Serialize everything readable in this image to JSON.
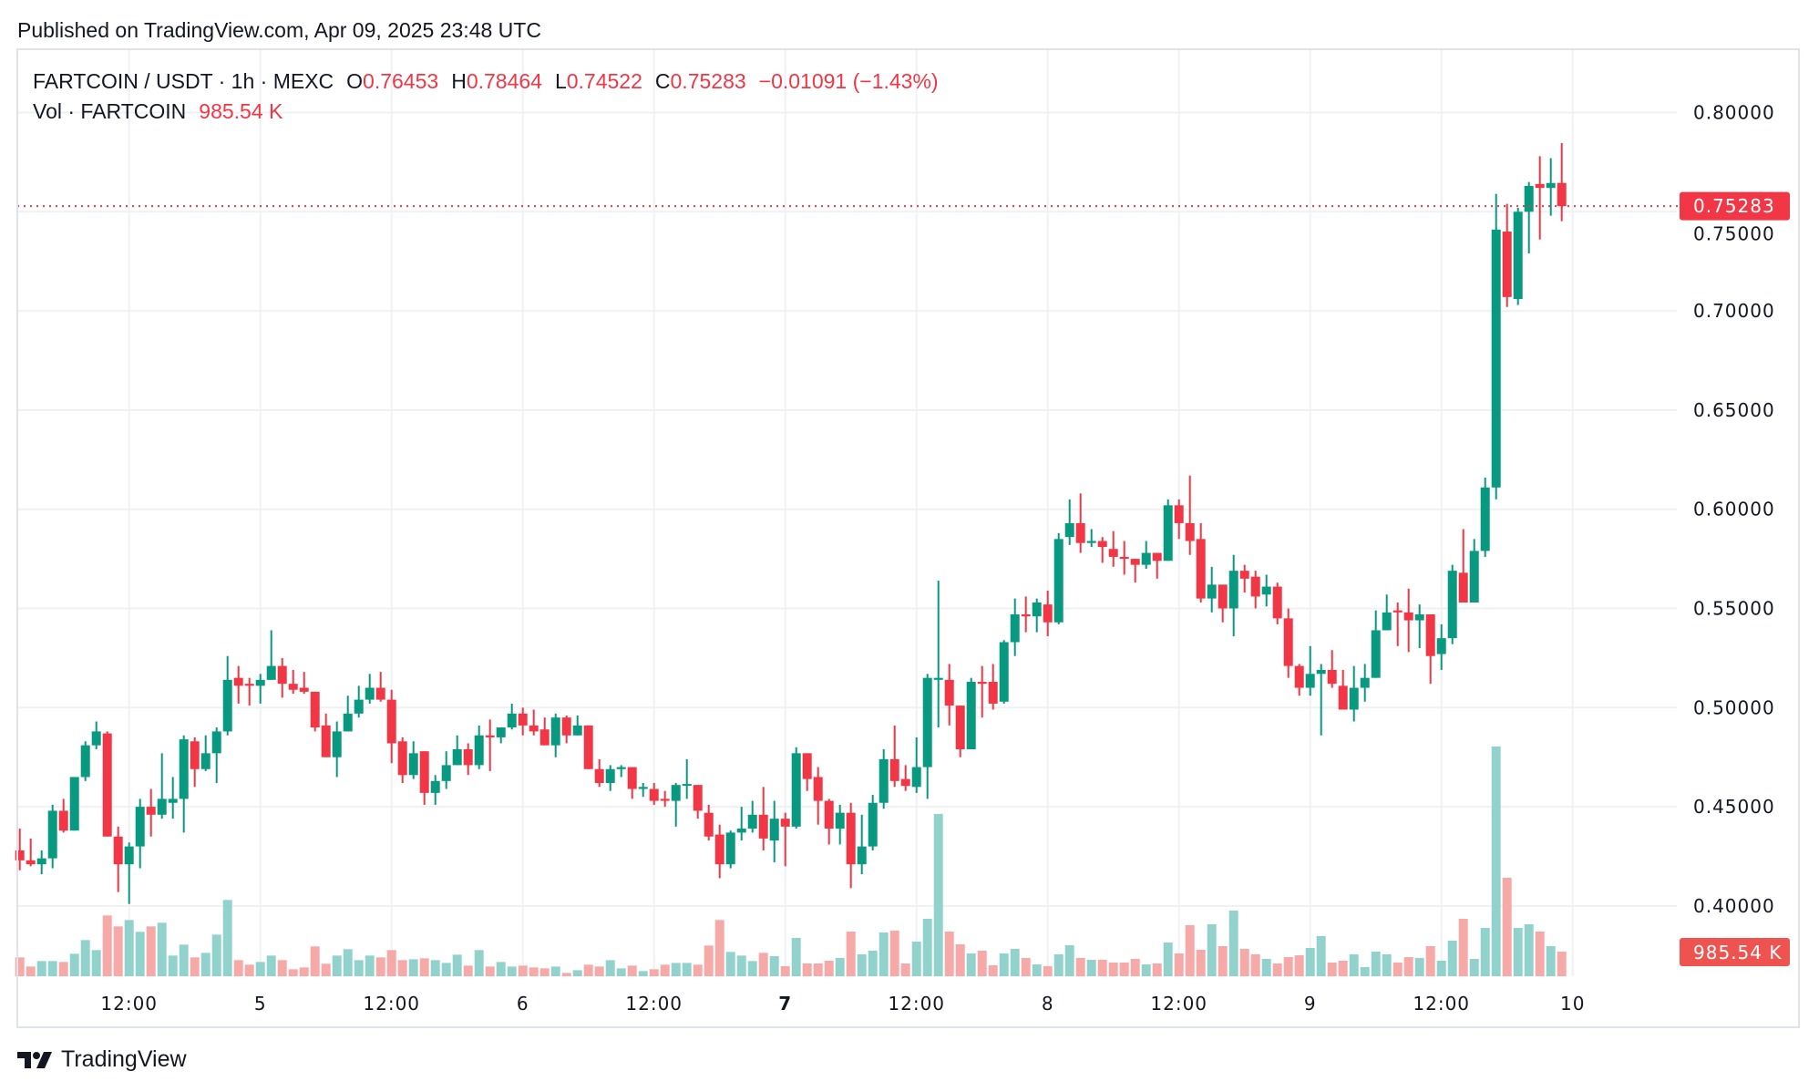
{
  "published": "Published on TradingView.com, Apr 09, 2025 23:48 UTC",
  "legend": {
    "symbol": "FARTCOIN / USDT · 1h · MEXC",
    "open_label": "O",
    "open": "0.76453",
    "high_label": "H",
    "high": "0.78464",
    "low_label": "L",
    "low": "0.74522",
    "close_label": "C",
    "close": "0.75283",
    "change": "−0.01091 (−1.43%)",
    "volume_label": "Vol · FARTCOIN",
    "volume": "985.54 K"
  },
  "price_tag": "0.75283",
  "volume_tag": "985.54 K",
  "footer": {
    "brand": "TradingView"
  },
  "colors": {
    "up": "#089981",
    "down": "#f23645",
    "up_volume": "#92d2cc",
    "down_volume": "#f7a9a7",
    "grid": "#f0f1f4"
  },
  "chart_data": {
    "type": "candlestick",
    "title": "FARTCOIN / USDT · 1h · MEXC",
    "interval": "1h",
    "ylim": [
      0.37,
      0.82
    ],
    "y_ticks": [
      "0.80000",
      "0.75000",
      "0.70000",
      "0.65000",
      "0.60000",
      "0.55000",
      "0.50000",
      "0.45000",
      "0.40000"
    ],
    "last_price": 0.75283,
    "x_ticks": [
      {
        "label": "12:00",
        "candle": 10
      },
      {
        "label": "5",
        "candle": 22
      },
      {
        "label": "12:00",
        "candle": 34
      },
      {
        "label": "6",
        "candle": 46
      },
      {
        "label": "12:00",
        "candle": 58
      },
      {
        "label": "7",
        "candle": 70,
        "emphasized": true
      },
      {
        "label": "12:00",
        "candle": 82
      },
      {
        "label": "8",
        "candle": 94
      },
      {
        "label": "12:00",
        "candle": 106
      },
      {
        "label": "9",
        "candle": 118
      },
      {
        "label": "12:00",
        "candle": 130
      },
      {
        "label": "10",
        "candle": 142
      }
    ],
    "candle_fields": [
      "open",
      "high",
      "low",
      "close",
      "volume_k"
    ],
    "candles": [
      [
        0.428,
        0.439,
        0.418,
        0.423,
        754
      ],
      [
        0.423,
        0.434,
        0.42,
        0.421,
        389
      ],
      [
        0.421,
        0.428,
        0.416,
        0.424,
        608
      ],
      [
        0.424,
        0.451,
        0.419,
        0.448,
        608
      ],
      [
        0.448,
        0.454,
        0.437,
        0.438,
        572
      ],
      [
        0.438,
        0.465,
        0.438,
        0.465,
        900
      ],
      [
        0.465,
        0.483,
        0.463,
        0.481,
        1448
      ],
      [
        0.481,
        0.493,
        0.479,
        0.488,
        1047
      ],
      [
        0.487,
        0.488,
        0.435,
        0.435,
        2434
      ],
      [
        0.435,
        0.44,
        0.407,
        0.421,
        1996
      ],
      [
        0.421,
        0.432,
        0.401,
        0.43,
        2251
      ],
      [
        0.43,
        0.454,
        0.419,
        0.45,
        1777
      ],
      [
        0.45,
        0.459,
        0.435,
        0.446,
        1996
      ],
      [
        0.446,
        0.477,
        0.444,
        0.454,
        2142
      ],
      [
        0.452,
        0.465,
        0.444,
        0.454,
        828
      ],
      [
        0.454,
        0.486,
        0.437,
        0.484,
        1266
      ],
      [
        0.483,
        0.485,
        0.46,
        0.469,
        754
      ],
      [
        0.469,
        0.486,
        0.468,
        0.477,
        937
      ],
      [
        0.477,
        0.49,
        0.462,
        0.488,
        1667
      ],
      [
        0.488,
        0.526,
        0.486,
        0.514,
        3055
      ],
      [
        0.515,
        0.521,
        0.502,
        0.511,
        645
      ],
      [
        0.512,
        0.515,
        0.501,
        0.511,
        462
      ],
      [
        0.511,
        0.517,
        0.502,
        0.514,
        572
      ],
      [
        0.514,
        0.539,
        0.514,
        0.521,
        828
      ],
      [
        0.521,
        0.525,
        0.505,
        0.512,
        645
      ],
      [
        0.512,
        0.519,
        0.507,
        0.509,
        280
      ],
      [
        0.51,
        0.518,
        0.507,
        0.508,
        353
      ],
      [
        0.508,
        0.508,
        0.488,
        0.49,
        1193
      ],
      [
        0.491,
        0.497,
        0.475,
        0.475,
        499
      ],
      [
        0.475,
        0.493,
        0.465,
        0.488,
        828
      ],
      [
        0.488,
        0.506,
        0.488,
        0.497,
        1083
      ],
      [
        0.497,
        0.511,
        0.495,
        0.504,
        645
      ],
      [
        0.504,
        0.517,
        0.502,
        0.51,
        828
      ],
      [
        0.51,
        0.518,
        0.503,
        0.504,
        754
      ],
      [
        0.504,
        0.509,
        0.472,
        0.482,
        1047
      ],
      [
        0.483,
        0.485,
        0.462,
        0.466,
        645
      ],
      [
        0.466,
        0.483,
        0.464,
        0.477,
        681
      ],
      [
        0.478,
        0.478,
        0.451,
        0.457,
        718
      ],
      [
        0.457,
        0.466,
        0.451,
        0.463,
        645
      ],
      [
        0.463,
        0.478,
        0.459,
        0.471,
        535
      ],
      [
        0.471,
        0.486,
        0.471,
        0.479,
        864
      ],
      [
        0.479,
        0.482,
        0.466,
        0.471,
        426
      ],
      [
        0.471,
        0.491,
        0.469,
        0.486,
        1047
      ],
      [
        0.486,
        0.494,
        0.468,
        0.485,
        389
      ],
      [
        0.485,
        0.49,
        0.482,
        0.49,
        572
      ],
      [
        0.49,
        0.502,
        0.489,
        0.497,
        389
      ],
      [
        0.497,
        0.5,
        0.486,
        0.491,
        426
      ],
      [
        0.491,
        0.499,
        0.486,
        0.488,
        353
      ],
      [
        0.489,
        0.495,
        0.481,
        0.481,
        316
      ],
      [
        0.481,
        0.497,
        0.475,
        0.495,
        389
      ],
      [
        0.495,
        0.496,
        0.482,
        0.486,
        134
      ],
      [
        0.486,
        0.496,
        0.486,
        0.491,
        243
      ],
      [
        0.491,
        0.491,
        0.469,
        0.469,
        462
      ],
      [
        0.469,
        0.474,
        0.46,
        0.462,
        389
      ],
      [
        0.462,
        0.471,
        0.458,
        0.469,
        645
      ],
      [
        0.469,
        0.471,
        0.465,
        0.47,
        316
      ],
      [
        0.47,
        0.47,
        0.454,
        0.459,
        426
      ],
      [
        0.459,
        0.462,
        0.455,
        0.46,
        207
      ],
      [
        0.459,
        0.462,
        0.451,
        0.453,
        280
      ],
      [
        0.454,
        0.458,
        0.45,
        0.453,
        462
      ],
      [
        0.453,
        0.462,
        0.44,
        0.461,
        535
      ],
      [
        0.461,
        0.474,
        0.454,
        0.4615,
        535
      ],
      [
        0.461,
        0.461,
        0.444,
        0.448,
        462
      ],
      [
        0.447,
        0.451,
        0.433,
        0.435,
        1229
      ],
      [
        0.436,
        0.441,
        0.414,
        0.421,
        2251
      ],
      [
        0.421,
        0.438,
        0.419,
        0.437,
        974
      ],
      [
        0.437,
        0.45,
        0.433,
        0.439,
        828
      ],
      [
        0.439,
        0.453,
        0.437,
        0.446,
        608
      ],
      [
        0.446,
        0.46,
        0.428,
        0.434,
        937
      ],
      [
        0.433,
        0.453,
        0.422,
        0.444,
        803
      ],
      [
        0.444,
        0.447,
        0.42,
        0.44,
        402
      ],
      [
        0.44,
        0.48,
        0.439,
        0.477,
        1533
      ],
      [
        0.477,
        0.477,
        0.458,
        0.464,
        511
      ],
      [
        0.465,
        0.47,
        0.441,
        0.453,
        511
      ],
      [
        0.453,
        0.454,
        0.431,
        0.439,
        621
      ],
      [
        0.439,
        0.451,
        0.431,
        0.447,
        730
      ],
      [
        0.447,
        0.452,
        0.409,
        0.421,
        1789
      ],
      [
        0.421,
        0.446,
        0.416,
        0.43,
        876
      ],
      [
        0.43,
        0.456,
        0.428,
        0.452,
        1022
      ],
      [
        0.452,
        0.479,
        0.449,
        0.474,
        1752
      ],
      [
        0.474,
        0.491,
        0.46,
        0.463,
        1826
      ],
      [
        0.464,
        0.471,
        0.458,
        0.4605,
        511
      ],
      [
        0.46,
        0.485,
        0.457,
        0.47,
        1387
      ],
      [
        0.47,
        0.517,
        0.454,
        0.515,
        2300
      ],
      [
        0.514,
        0.564,
        0.49,
        0.515,
        6499
      ],
      [
        0.514,
        0.522,
        0.491,
        0.501,
        1789
      ],
      [
        0.501,
        0.501,
        0.475,
        0.479,
        1278
      ],
      [
        0.479,
        0.515,
        0.479,
        0.513,
        913
      ],
      [
        0.513,
        0.521,
        0.495,
        0.512,
        1022
      ],
      [
        0.513,
        0.522,
        0.499,
        0.502,
        438
      ],
      [
        0.503,
        0.534,
        0.502,
        0.533,
        913
      ],
      [
        0.533,
        0.555,
        0.526,
        0.547,
        1095
      ],
      [
        0.547,
        0.556,
        0.538,
        0.546,
        730
      ],
      [
        0.546,
        0.555,
        0.538,
        0.553,
        475
      ],
      [
        0.552,
        0.559,
        0.536,
        0.543,
        402
      ],
      [
        0.543,
        0.588,
        0.542,
        0.585,
        876
      ],
      [
        0.586,
        0.605,
        0.582,
        0.593,
        1241
      ],
      [
        0.593,
        0.608,
        0.578,
        0.583,
        730
      ],
      [
        0.583,
        0.59,
        0.581,
        0.584,
        657
      ],
      [
        0.584,
        0.586,
        0.573,
        0.581,
        657
      ],
      [
        0.58,
        0.589,
        0.571,
        0.576,
        548
      ],
      [
        0.576,
        0.584,
        0.567,
        0.575,
        548
      ],
      [
        0.575,
        0.575,
        0.563,
        0.572,
        694
      ],
      [
        0.572,
        0.584,
        0.57,
        0.578,
        475
      ],
      [
        0.578,
        0.578,
        0.565,
        0.574,
        511
      ],
      [
        0.574,
        0.605,
        0.574,
        0.602,
        1351
      ],
      [
        0.602,
        0.605,
        0.585,
        0.593,
        913
      ],
      [
        0.593,
        0.617,
        0.577,
        0.584,
        2045
      ],
      [
        0.585,
        0.593,
        0.553,
        0.555,
        1059
      ],
      [
        0.555,
        0.571,
        0.548,
        0.562,
        2081
      ],
      [
        0.562,
        0.562,
        0.543,
        0.55,
        1205
      ],
      [
        0.55,
        0.577,
        0.536,
        0.569,
        2629
      ],
      [
        0.569,
        0.572,
        0.558,
        0.565,
        1095
      ],
      [
        0.566,
        0.569,
        0.55,
        0.556,
        876
      ],
      [
        0.557,
        0.567,
        0.551,
        0.561,
        694
      ],
      [
        0.561,
        0.563,
        0.542,
        0.545,
        511
      ],
      [
        0.545,
        0.55,
        0.515,
        0.521,
        767
      ],
      [
        0.521,
        0.522,
        0.506,
        0.51,
        840
      ],
      [
        0.51,
        0.531,
        0.506,
        0.517,
        1132
      ],
      [
        0.517,
        0.522,
        0.486,
        0.519,
        1606
      ],
      [
        0.519,
        0.529,
        0.51,
        0.512,
        548
      ],
      [
        0.511,
        0.519,
        0.499,
        0.499,
        621
      ],
      [
        0.499,
        0.521,
        0.493,
        0.51,
        876
      ],
      [
        0.51,
        0.522,
        0.503,
        0.515,
        365
      ],
      [
        0.515,
        0.549,
        0.515,
        0.539,
        986
      ],
      [
        0.539,
        0.557,
        0.539,
        0.548,
        876
      ],
      [
        0.549,
        0.553,
        0.531,
        0.548,
        548
      ],
      [
        0.548,
        0.56,
        0.528,
        0.544,
        767
      ],
      [
        0.544,
        0.552,
        0.53,
        0.547,
        730
      ],
      [
        0.547,
        0.547,
        0.512,
        0.526,
        1205
      ],
      [
        0.527,
        0.542,
        0.519,
        0.535,
        621
      ],
      [
        0.535,
        0.572,
        0.532,
        0.569,
        1424
      ],
      [
        0.568,
        0.59,
        0.553,
        0.553,
        2300
      ],
      [
        0.553,
        0.585,
        0.553,
        0.579,
        694
      ],
      [
        0.579,
        0.616,
        0.576,
        0.611,
        1935
      ],
      [
        0.611,
        0.759,
        0.605,
        0.741,
        9200
      ],
      [
        0.74,
        0.754,
        0.702,
        0.707,
        3943
      ],
      [
        0.706,
        0.752,
        0.703,
        0.75,
        1935
      ],
      [
        0.75,
        0.765,
        0.729,
        0.763,
        2081
      ],
      [
        0.764,
        0.778,
        0.736,
        0.762,
        1789
      ],
      [
        0.762,
        0.777,
        0.748,
        0.7645,
        1205
      ],
      [
        0.76453,
        0.78464,
        0.74522,
        0.75283,
        985.54
      ]
    ]
  }
}
